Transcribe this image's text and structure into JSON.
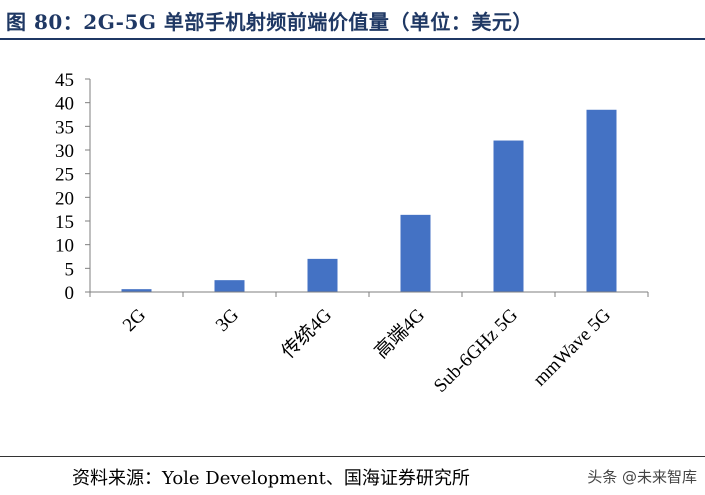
{
  "figure_title": "图 80：2G-5G 单部手机射频前端价值量（单位：美元）",
  "source_text": "资料来源：Yole Development、国海证券研究所",
  "watermark": "头条 @未来智库",
  "bar_color": "#4472c4",
  "chart_data": {
    "type": "bar",
    "title": "2G-5G 单部手机射频前端价值量（单位：美元）",
    "xlabel": "",
    "ylabel": "",
    "categories": [
      "2G",
      "3G",
      "传统4G",
      "高端4G",
      "Sub-6GHz 5G",
      "mmWave 5G"
    ],
    "values": [
      0.6,
      2.5,
      7,
      16.3,
      32,
      38.5
    ],
    "ylim": [
      0,
      45
    ],
    "yticks": [
      0,
      5,
      10,
      15,
      20,
      25,
      30,
      35,
      40,
      45
    ],
    "grid": false,
    "legend": "none"
  }
}
